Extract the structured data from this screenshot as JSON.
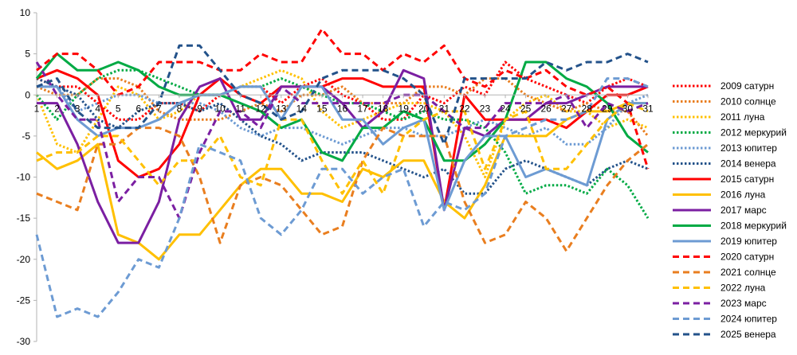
{
  "chart_data": {
    "type": "line",
    "title": "",
    "xlabel": "",
    "ylabel": "",
    "ylim": [
      -30,
      10
    ],
    "yticks": [
      10,
      5,
      0,
      -5,
      -10,
      -15,
      -20,
      -25,
      -30
    ],
    "grid": false,
    "legend_position": "right",
    "categories": [
      "1",
      "2",
      "3",
      "4",
      "5",
      "6",
      "7",
      "8",
      "9",
      "10",
      "11",
      "12",
      "13",
      "14",
      "15",
      "16",
      "17",
      "18",
      "19",
      "20",
      "21",
      "22",
      "23",
      "24",
      "25",
      "26",
      "27",
      "28",
      "29",
      "30",
      "31"
    ],
    "series": [
      {
        "name": "2009 сатурн",
        "color": "#ff0000",
        "style": "dotted",
        "values": [
          2,
          1,
          1,
          -1,
          -3,
          -3,
          -1,
          -1,
          -2,
          0,
          1,
          1,
          -1,
          1,
          2,
          0,
          -1,
          -3,
          -3,
          0,
          -1,
          1,
          0,
          4,
          2,
          1,
          0,
          -1,
          1,
          2,
          1
        ]
      },
      {
        "name": "2010 солнце",
        "color": "#e97e1f",
        "style": "dotted",
        "values": [
          1,
          0,
          0,
          2,
          2,
          1,
          -2,
          -3,
          -3,
          -3,
          -2,
          -1,
          -2,
          0,
          0,
          1,
          -1,
          -1,
          -1,
          1,
          1,
          0,
          2,
          2,
          0,
          -1,
          -2,
          -1,
          -2,
          -2,
          -5
        ]
      },
      {
        "name": "2011 луна",
        "color": "#ffc000",
        "style": "dotted",
        "values": [
          0,
          -6,
          -7,
          -3,
          1,
          0,
          -3,
          -2,
          0,
          0,
          1,
          2,
          3,
          2,
          -2,
          -4,
          -3,
          -2,
          -1,
          -1,
          -2,
          -5,
          -10,
          -3,
          -1,
          0,
          -2,
          -2,
          -4,
          -3,
          -4
        ]
      },
      {
        "name": "2012 меркурий",
        "color": "#00aa44",
        "style": "dotted",
        "values": [
          0,
          -3,
          0,
          2,
          3,
          3,
          2,
          1,
          0,
          0,
          1,
          1,
          2,
          1,
          0,
          -1,
          -1,
          -2,
          -3,
          -2,
          -3,
          -3,
          -4,
          -7,
          -12,
          -11,
          -11,
          -12,
          -9,
          -11,
          -15
        ]
      },
      {
        "name": "2013 юпитер",
        "color": "#6d9bd3",
        "style": "dotted",
        "values": [
          1,
          1,
          -2,
          -1,
          0,
          0,
          -1,
          -1,
          -1,
          -2,
          -4,
          -5,
          -4,
          -4,
          -5,
          -6,
          -5,
          -4,
          -4,
          -5,
          -5,
          -4,
          -3,
          -4,
          -5,
          -4,
          -6,
          -6,
          -4,
          -1,
          0
        ]
      },
      {
        "name": "2014 венера",
        "color": "#23528a",
        "style": "dotted",
        "values": [
          2,
          1,
          0,
          -3,
          -4,
          -2,
          -1,
          -1,
          -2,
          -1,
          -3,
          -5,
          -6,
          -8,
          -7,
          -7,
          -7,
          -8,
          -9,
          -10,
          -9,
          -12,
          -12,
          -9,
          -8,
          -9,
          -10,
          -11,
          -9,
          -8,
          -9
        ]
      },
      {
        "name": "2015 сатурн",
        "color": "#ff0000",
        "style": "solid",
        "values": [
          2,
          3,
          2,
          0,
          -8,
          -10,
          -9,
          -6,
          0,
          2,
          0,
          -1,
          1,
          1,
          1,
          2,
          2,
          1,
          1,
          1,
          -14,
          0,
          -3,
          -3,
          -3,
          -3,
          -4,
          -2,
          0,
          0,
          1
        ]
      },
      {
        "name": "2016 луна",
        "color": "#ffc000",
        "style": "solid",
        "values": [
          -7,
          -9,
          -8,
          -6,
          -17,
          -18,
          -20,
          -17,
          -17,
          -14,
          -11,
          -9,
          -9,
          -12,
          -12,
          -13,
          -9,
          -10,
          -8,
          -8,
          -13,
          -15,
          -11,
          -5,
          -5,
          -5,
          -3,
          -2,
          -2,
          -1,
          -1
        ]
      },
      {
        "name": "2017 марс",
        "color": "#7b1fa2",
        "style": "solid",
        "values": [
          -1,
          -1,
          -6,
          -13,
          -18,
          -18,
          -13,
          -3,
          1,
          2,
          -3,
          -3,
          1,
          1,
          1,
          -1,
          -4,
          -2,
          3,
          2,
          -14,
          -4,
          -5,
          -3,
          -3,
          -1,
          -1,
          0,
          1,
          1,
          1
        ]
      },
      {
        "name": "2018 меркурий",
        "color": "#00aa44",
        "style": "solid",
        "values": [
          2,
          5,
          3,
          3,
          4,
          3,
          1,
          0,
          0,
          0,
          -1,
          -2,
          -4,
          -3,
          -7,
          -8,
          -4,
          -4,
          -2,
          -3,
          -8,
          -8,
          -6,
          -3,
          4,
          4,
          2,
          1,
          -1,
          -5,
          -7
        ]
      },
      {
        "name": "2019 юпитер",
        "color": "#6d9bd3",
        "style": "solid",
        "values": [
          1,
          1,
          -3,
          -5,
          -4,
          -4,
          -3,
          -1,
          0,
          0,
          1,
          1,
          -3,
          1,
          1,
          -3,
          -3,
          -6,
          -4,
          -3,
          -14,
          -8,
          -5,
          -5,
          -10,
          -9,
          -10,
          -11,
          -3,
          -1,
          -1
        ]
      },
      {
        "name": "2020 сатурн",
        "color": "#ff0000",
        "style": "dashed",
        "values": [
          3,
          5,
          5,
          3,
          0,
          1,
          4,
          4,
          4,
          3,
          3,
          5,
          4,
          4,
          8,
          5,
          5,
          3,
          5,
          4,
          6,
          2,
          1,
          3,
          2,
          3,
          1,
          0,
          1,
          -1,
          -9
        ]
      },
      {
        "name": "2021 солнце",
        "color": "#e97e1f",
        "style": "dashed",
        "values": [
          -12,
          -13,
          -14,
          -6,
          -6,
          -4,
          -4,
          -5,
          -10,
          -18,
          -11,
          -10,
          -11,
          -14,
          -17,
          -16,
          -8,
          -4,
          -5,
          -5,
          -5,
          -13,
          -18,
          -17,
          -13,
          -15,
          -19,
          -15,
          -11,
          -8,
          -6
        ]
      },
      {
        "name": "2022 луна",
        "color": "#ffc000",
        "style": "dashed",
        "values": [
          -8,
          -7,
          -7,
          -5,
          -5,
          -8,
          -11,
          -8,
          -8,
          -5,
          -10,
          -11,
          -3,
          -3,
          -8,
          -12,
          -8,
          -12,
          -5,
          -3,
          -2,
          -2,
          -9,
          -3,
          -2,
          -9,
          -9,
          -6,
          -3,
          -1,
          -2
        ]
      },
      {
        "name": "2023 марс",
        "color": "#7b1fa2",
        "style": "dashed",
        "values": [
          4,
          0,
          -3,
          -3,
          -13,
          -10,
          -10,
          -15,
          -7,
          -2,
          -2,
          -4,
          1,
          -1,
          -1,
          -1,
          -1,
          -1,
          0,
          0,
          -2,
          -4,
          -4,
          -1,
          -1,
          -1,
          0,
          -4,
          -1,
          -2,
          -1
        ]
      },
      {
        "name": "2024 юпитер",
        "color": "#6d9bd3",
        "style": "dashed",
        "values": [
          -17,
          -27,
          -26,
          -27,
          -24,
          -20,
          -21,
          -15,
          -6,
          -7,
          -8,
          -15,
          -17,
          -14,
          -9,
          -9,
          -12,
          -10,
          -9,
          -16,
          -13,
          -14,
          -12,
          -5,
          -4,
          -3,
          -3,
          -2,
          2,
          2,
          1
        ]
      },
      {
        "name": "2025 венера",
        "color": "#23528a",
        "style": "dashed",
        "values": [
          1,
          2,
          -2,
          -4,
          -4,
          -4,
          -1,
          6,
          6,
          3,
          0,
          -1,
          -3,
          -2,
          2,
          3,
          3,
          3,
          2,
          0,
          -6,
          2,
          2,
          2,
          2,
          4,
          3,
          4,
          4,
          5,
          4
        ]
      }
    ]
  }
}
